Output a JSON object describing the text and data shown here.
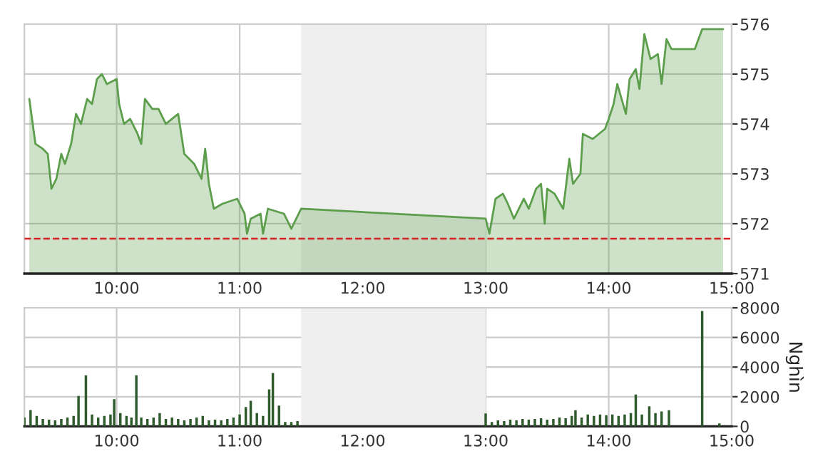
{
  "chart_data": [
    {
      "type": "area",
      "x": [
        9.29,
        9.34,
        9.4,
        9.44,
        9.47,
        9.51,
        9.55,
        9.58,
        9.63,
        9.67,
        9.71,
        9.76,
        9.8,
        9.84,
        9.88,
        9.92,
        10.0,
        10.02,
        10.06,
        10.11,
        10.17,
        10.2,
        10.23,
        10.29,
        10.34,
        10.4,
        10.5,
        10.55,
        10.63,
        10.69,
        10.72,
        10.75,
        10.79,
        10.86,
        10.98,
        11.04,
        11.06,
        11.09,
        11.17,
        11.19,
        11.23,
        11.36,
        11.42,
        11.5,
        13.0,
        13.03,
        13.08,
        13.14,
        13.18,
        13.23,
        13.31,
        13.35,
        13.41,
        13.45,
        13.48,
        13.5,
        13.56,
        13.63,
        13.68,
        13.71,
        13.77,
        13.79,
        13.87,
        13.97,
        14.0,
        14.04,
        14.07,
        14.14,
        14.17,
        14.22,
        14.25,
        14.29,
        14.34,
        14.4,
        14.43,
        14.47,
        14.51,
        14.7,
        14.76,
        14.93
      ],
      "series": [
        {
          "color": "#5c9e4c",
          "values": [
            574.5,
            573.6,
            573.5,
            573.4,
            572.7,
            572.9,
            573.4,
            573.2,
            573.6,
            574.2,
            574.0,
            574.5,
            574.4,
            574.9,
            575.0,
            574.8,
            574.9,
            574.4,
            574.0,
            574.1,
            573.8,
            573.6,
            574.5,
            574.3,
            574.3,
            574.0,
            574.2,
            573.4,
            573.2,
            572.9,
            573.5,
            572.8,
            572.3,
            572.4,
            572.5,
            572.2,
            571.8,
            572.1,
            572.2,
            571.8,
            572.3,
            572.2,
            571.9,
            572.3,
            572.1,
            571.8,
            572.5,
            572.6,
            572.4,
            572.1,
            572.5,
            572.3,
            572.7,
            572.8,
            572.0,
            572.7,
            572.6,
            572.3,
            573.3,
            572.8,
            573.0,
            573.8,
            573.7,
            573.9,
            574.1,
            574.4,
            574.8,
            574.2,
            574.9,
            575.1,
            574.7,
            575.8,
            575.3,
            575.4,
            574.8,
            575.7,
            575.5,
            575.5,
            575.9,
            575.9
          ]
        }
      ],
      "xlim": [
        9.25,
        15.0
      ],
      "ylim": [
        571,
        576
      ],
      "xticks": [
        {
          "value": 10,
          "label": "10:00"
        },
        {
          "value": 11,
          "label": "11:00"
        },
        {
          "value": 12,
          "label": "12:00"
        },
        {
          "value": 13,
          "label": "13:00"
        },
        {
          "value": 14,
          "label": "14:00"
        },
        {
          "value": 15,
          "label": "15:00"
        }
      ],
      "yticks": [
        571,
        572,
        573,
        574,
        575,
        576
      ],
      "bands": [
        {
          "axis": "x",
          "from": 11.5,
          "to": 13.0,
          "color": "#efefef"
        }
      ],
      "ref_lines": [
        {
          "axis": "y",
          "value": 571.7,
          "color": "#d62020",
          "line_style": "dashed"
        }
      ],
      "grid": true
    },
    {
      "type": "bar",
      "ylabel": "Nghìn",
      "x": [
        9.25,
        9.3,
        9.35,
        9.4,
        9.45,
        9.5,
        9.55,
        9.6,
        9.65,
        9.69,
        9.75,
        9.8,
        9.85,
        9.9,
        9.95,
        9.98,
        10.03,
        10.08,
        10.12,
        10.16,
        10.2,
        10.25,
        10.3,
        10.35,
        10.4,
        10.45,
        10.5,
        10.55,
        10.6,
        10.65,
        10.7,
        10.75,
        10.8,
        10.85,
        10.9,
        10.95,
        11.0,
        11.05,
        11.09,
        11.14,
        11.19,
        11.24,
        11.27,
        11.32,
        11.37,
        11.42,
        11.47,
        13.0,
        13.05,
        13.1,
        13.15,
        13.2,
        13.25,
        13.3,
        13.35,
        13.4,
        13.45,
        13.5,
        13.55,
        13.6,
        13.65,
        13.7,
        13.73,
        13.78,
        13.83,
        13.88,
        13.93,
        13.98,
        14.03,
        14.08,
        14.13,
        14.18,
        14.22,
        14.27,
        14.33,
        14.38,
        14.43,
        14.49,
        14.76,
        14.9
      ],
      "series": [
        {
          "color": "#2f5a2c",
          "values": [
            600,
            1100,
            700,
            500,
            450,
            400,
            500,
            600,
            700,
            2050,
            3440,
            800,
            600,
            700,
            800,
            1830,
            900,
            700,
            600,
            3440,
            600,
            500,
            600,
            900,
            500,
            600,
            500,
            400,
            500,
            600,
            700,
            400,
            450,
            400,
            500,
            600,
            800,
            1300,
            1730,
            900,
            700,
            2500,
            3600,
            1400,
            300,
            300,
            350,
            870,
            300,
            400,
            350,
            450,
            400,
            500,
            450,
            500,
            550,
            450,
            500,
            600,
            550,
            700,
            1090,
            600,
            800,
            700,
            800,
            750,
            800,
            700,
            800,
            900,
            2150,
            800,
            1350,
            900,
            1000,
            1090,
            7780,
            200
          ]
        }
      ],
      "xlim": [
        9.25,
        15.0
      ],
      "ylim": [
        0,
        8000
      ],
      "xticks": [
        {
          "value": 10,
          "label": "10:00"
        },
        {
          "value": 11,
          "label": "11:00"
        },
        {
          "value": 12,
          "label": "12:00"
        },
        {
          "value": 13,
          "label": "13:00"
        },
        {
          "value": 14,
          "label": "14:00"
        },
        {
          "value": 15,
          "label": "15:00"
        }
      ],
      "yticks": [
        0,
        2000,
        4000,
        6000,
        8000
      ],
      "bands": [
        {
          "axis": "x",
          "from": 11.5,
          "to": 13.0,
          "color": "#efefef"
        }
      ],
      "grid": true
    }
  ]
}
